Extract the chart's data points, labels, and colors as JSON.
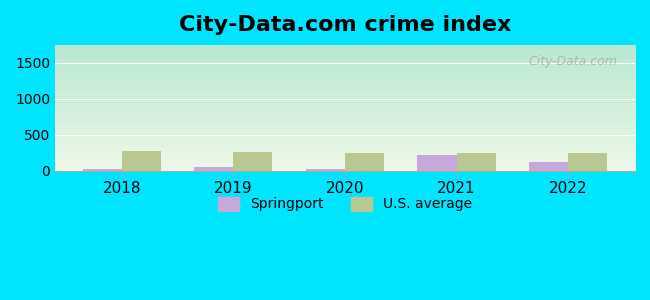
{
  "title": "City-Data.com crime index",
  "years": [
    2018,
    2019,
    2020,
    2021,
    2022
  ],
  "springport": [
    30,
    60,
    25,
    220,
    130
  ],
  "us_average": [
    270,
    265,
    250,
    245,
    250
  ],
  "springport_color": "#c8a8d8",
  "us_average_color": "#b8c890",
  "ylim": [
    0,
    1750
  ],
  "yticks": [
    0,
    500,
    1000,
    1500
  ],
  "background_top": "#b8e8d0",
  "background_bottom": "#eef8e8",
  "outer_bg": "#00e5ff",
  "title_fontsize": 16,
  "bar_width": 0.35,
  "watermark_text": "City-Data.com",
  "legend_labels": [
    "Springport",
    "U.S. average"
  ]
}
